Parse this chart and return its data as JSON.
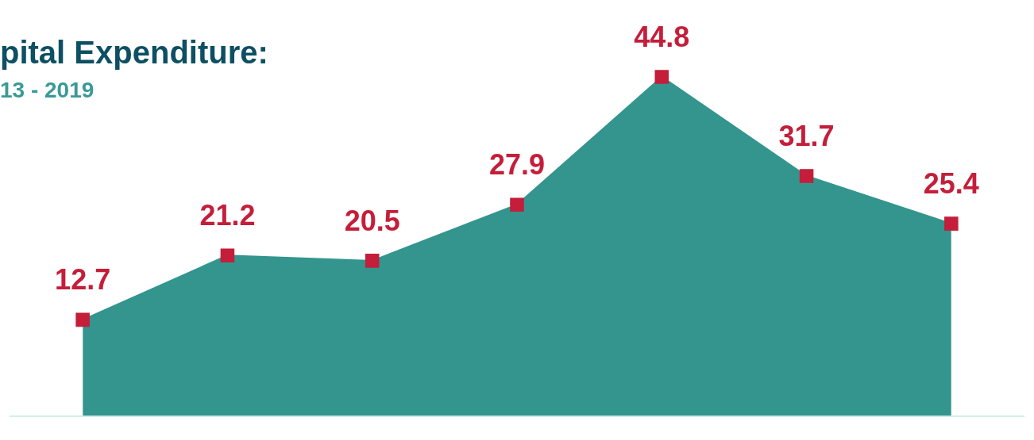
{
  "chart_data": {
    "type": "area",
    "title": "pital Expenditure:",
    "subtitle": "13 - 2019",
    "categories": [
      null,
      null,
      null,
      null,
      null,
      null,
      null
    ],
    "series": [
      {
        "color": "#34958f",
        "values": [
          12.7,
          21.2,
          20.5,
          27.9,
          44.8,
          31.7,
          25.4
        ]
      }
    ],
    "data_labels": true,
    "marker": "square",
    "grid": false,
    "legend": false
  }
}
